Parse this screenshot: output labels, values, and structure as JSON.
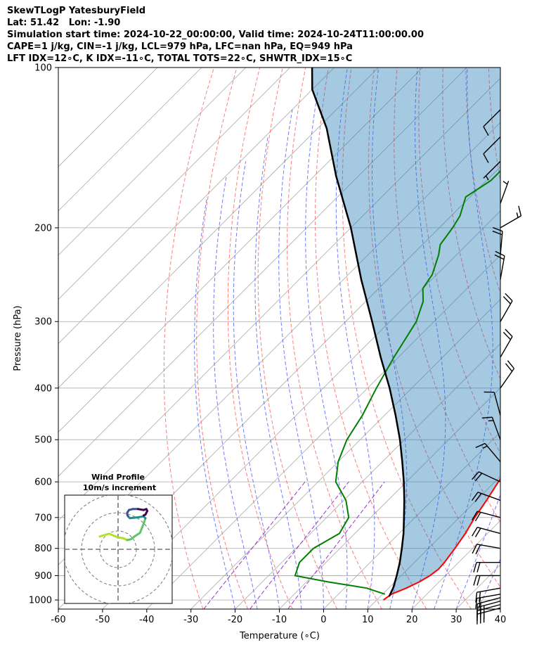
{
  "title_lines": [
    "SkewTLogP YatesburyField",
    "Lat: 51.42   Lon: -1.90",
    "Simulation start time: 2024-10-22_00:00:00, Valid time: 2024-10-24T11:00:00.00",
    "CAPE=1 j/kg, CIN=-1 j/kg, LCL=979 hPa, LFC=nan hPa, EQ=949 hPa",
    "LFT IDX=12∘C, K IDX=-11∘C, TOTAL TOTS=22∘C, SHWTR_IDX=15∘C"
  ],
  "chart_data": [
    {
      "type": "line",
      "kind": "skew-t log-p",
      "xlabel": "Temperature (∘C)",
      "ylabel": "Pressure (hPa)",
      "xlim": [
        -60,
        40
      ],
      "ylim": [
        1040,
        100
      ],
      "x_ticks": [
        -60,
        -50,
        -40,
        -30,
        -20,
        -10,
        0,
        10,
        20,
        30,
        40
      ],
      "y_ticks": [
        1000,
        900,
        800,
        700,
        600,
        500,
        400,
        300,
        200,
        100
      ],
      "y_scale": "log",
      "grid": true,
      "colors": {
        "temperature": "#ff0000",
        "dewpoint": "#008000",
        "parcel": "#000000",
        "cape_fill": "#1f77b4",
        "dry_adiabat": "#ff4444",
        "moist_adiabat": "#3344ff",
        "mixing_ratio": "#9933cc",
        "isotherm": "#aaaaaa"
      },
      "series": [
        {
          "key": "temperature",
          "points": [
            [
              11.5,
              1000
            ],
            [
              12,
              975
            ],
            [
              14,
              950
            ],
            [
              15.5,
              925
            ],
            [
              16.5,
              900
            ],
            [
              17,
              875
            ],
            [
              16.8,
              850
            ],
            [
              16,
              800
            ],
            [
              15,
              750
            ],
            [
              13.5,
              700
            ],
            [
              12.3,
              650
            ],
            [
              10.8,
              600
            ],
            [
              9.5,
              550
            ],
            [
              6.5,
              500
            ],
            [
              4,
              450
            ],
            [
              0,
              400
            ],
            [
              -5,
              350
            ],
            [
              -10,
              300
            ],
            [
              -16,
              250
            ],
            [
              -21,
              200
            ],
            [
              -23,
              185
            ],
            [
              -23,
              175
            ],
            [
              -20,
              163
            ],
            [
              -19,
              155
            ],
            [
              -19,
              140
            ],
            [
              -19,
              125
            ],
            [
              -17,
              113
            ],
            [
              -16,
              105
            ],
            [
              -15,
              100
            ]
          ]
        },
        {
          "key": "dewpoint",
          "points": [
            [
              10.5,
              975
            ],
            [
              5,
              950
            ],
            [
              -5,
              925
            ],
            [
              -14,
              900
            ],
            [
              -16,
              850
            ],
            [
              -16,
              800
            ],
            [
              -13.5,
              750
            ],
            [
              -15,
              700
            ],
            [
              -19.5,
              650
            ],
            [
              -26,
              600
            ],
            [
              -30,
              550
            ],
            [
              -33,
              500
            ],
            [
              -35,
              450
            ],
            [
              -38,
              400
            ],
            [
              -41,
              350
            ],
            [
              -44,
              300
            ],
            [
              -47,
              275
            ],
            [
              -50,
              260
            ],
            [
              -51,
              245
            ],
            [
              -54,
              225
            ],
            [
              -56,
              215
            ],
            [
              -57,
              200
            ],
            [
              -58,
              190
            ],
            [
              -61,
              175
            ],
            [
              -59,
              163
            ],
            [
              -59,
              150
            ],
            [
              -57,
              140
            ],
            [
              -54,
              125
            ],
            [
              -48,
              110
            ],
            [
              -42,
              100
            ]
          ]
        },
        {
          "key": "parcel",
          "points": [
            [
              12,
              985
            ],
            [
              11,
              950
            ],
            [
              9,
              900
            ],
            [
              6.7,
              850
            ],
            [
              4,
              800
            ],
            [
              1,
              750
            ],
            [
              -2.5,
              700
            ],
            [
              -6.3,
              650
            ],
            [
              -10.6,
              600
            ],
            [
              -15.5,
              550
            ],
            [
              -21,
              500
            ],
            [
              -27.5,
              450
            ],
            [
              -35,
              400
            ],
            [
              -44,
              350
            ],
            [
              -54,
              300
            ],
            [
              -66,
              250
            ],
            [
              -80,
              200
            ],
            [
              -95,
              160
            ],
            [
              -108,
              130
            ],
            [
              -120,
              110
            ],
            [
              -125,
              100
            ]
          ]
        }
      ]
    },
    {
      "type": "line",
      "kind": "wind hodograph",
      "title": "Wind Profile",
      "subtitle": "10m/s increment",
      "ring_step": 10,
      "points": [
        [
          -10,
          7
        ],
        [
          -5,
          8.5
        ],
        [
          0,
          6.5
        ],
        [
          3,
          6
        ],
        [
          5,
          5
        ],
        [
          7,
          5.5
        ],
        [
          9,
          7
        ],
        [
          12,
          9
        ],
        [
          14,
          14
        ],
        [
          15,
          17
        ],
        [
          14,
          18
        ],
        [
          11,
          17.5
        ],
        [
          6.5,
          17
        ],
        [
          5.5,
          18
        ],
        [
          5,
          19
        ],
        [
          5,
          20
        ],
        [
          6,
          21.5
        ],
        [
          8,
          22
        ],
        [
          11,
          22
        ],
        [
          14,
          21.5
        ],
        [
          15.5,
          22
        ],
        [
          16,
          21
        ],
        [
          15,
          19
        ],
        [
          14,
          18.5
        ]
      ]
    }
  ],
  "wind_barbs": [
    {
      "p": 1035,
      "speed": 30,
      "dir": 255
    },
    {
      "p": 1020,
      "speed": 30,
      "dir": 255
    },
    {
      "p": 1005,
      "speed": 25,
      "dir": 255
    },
    {
      "p": 990,
      "speed": 20,
      "dir": 255
    },
    {
      "p": 975,
      "speed": 20,
      "dir": 260
    },
    {
      "p": 950,
      "speed": 20,
      "dir": 260
    },
    {
      "p": 900,
      "speed": 20,
      "dir": 270
    },
    {
      "p": 850,
      "speed": 20,
      "dir": 270
    },
    {
      "p": 800,
      "speed": 20,
      "dir": 280
    },
    {
      "p": 750,
      "speed": 20,
      "dir": 285
    },
    {
      "p": 700,
      "speed": 20,
      "dir": 285
    },
    {
      "p": 650,
      "speed": 20,
      "dir": 290
    },
    {
      "p": 600,
      "speed": 20,
      "dir": 295
    },
    {
      "p": 550,
      "speed": 15,
      "dir": 320
    },
    {
      "p": 500,
      "speed": 15,
      "dir": 340
    },
    {
      "p": 450,
      "speed": 10,
      "dir": 345
    },
    {
      "p": 400,
      "speed": 20,
      "dir": 35
    },
    {
      "p": 350,
      "speed": 20,
      "dir": 30
    },
    {
      "p": 300,
      "speed": 20,
      "dir": 30
    },
    {
      "p": 250,
      "speed": 20,
      "dir": 10
    },
    {
      "p": 225,
      "speed": 20,
      "dir": 5
    },
    {
      "p": 200,
      "speed": 15,
      "dir": 60
    },
    {
      "p": 180,
      "speed": 5,
      "dir": 20
    },
    {
      "p": 150,
      "speed": 5,
      "dir": 225
    },
    {
      "p": 135,
      "speed": 10,
      "dir": 225
    },
    {
      "p": 120,
      "speed": 10,
      "dir": 225
    }
  ]
}
